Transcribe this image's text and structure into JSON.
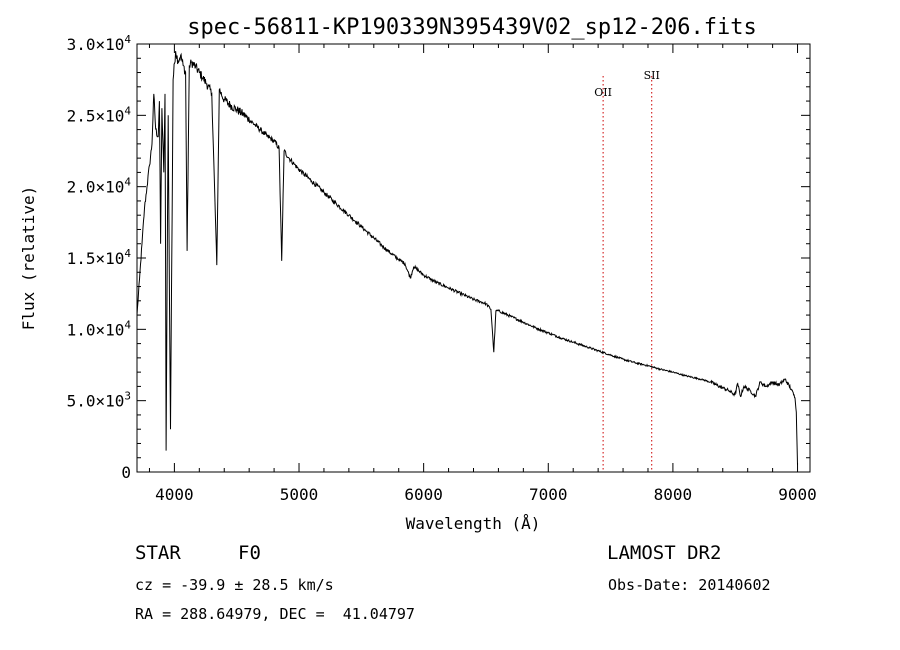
{
  "chart_data": {
    "type": "line",
    "title": "spec-56811-KP190339N395439V02_sp12-206.fits",
    "xlabel": "Wavelength (Å)",
    "ylabel": "Flux (relative)",
    "xlim": [
      3700,
      9100
    ],
    "ylim": [
      0,
      30000
    ],
    "grid": false,
    "x_ticks": [
      4000,
      5000,
      6000,
      7000,
      8000,
      9000
    ],
    "x_tick_labels": [
      "4000",
      "5000",
      "6000",
      "7000",
      "8000",
      "9000"
    ],
    "y_ticks": [
      {
        "value": 0,
        "mantissa": "0",
        "exp": ""
      },
      {
        "value": 5000,
        "mantissa": "5.0×10",
        "exp": "3"
      },
      {
        "value": 10000,
        "mantissa": "1.0×10",
        "exp": "4"
      },
      {
        "value": 15000,
        "mantissa": "1.5×10",
        "exp": "4"
      },
      {
        "value": 20000,
        "mantissa": "2.0×10",
        "exp": "4"
      },
      {
        "value": 25000,
        "mantissa": "2.5×10",
        "exp": "4"
      },
      {
        "value": 30000,
        "mantissa": "3.0×10",
        "exp": "4"
      }
    ],
    "reference_lines": [
      {
        "label": "OII",
        "x": 7440,
        "color": "#cc0000"
      },
      {
        "label": "SII",
        "x": 7830,
        "color": "#cc0000"
      }
    ],
    "series": [
      {
        "color": "#000000",
        "x": [
          3700,
          3720,
          3740,
          3760,
          3780,
          3800,
          3820,
          3835,
          3850,
          3870,
          3880,
          3889,
          3900,
          3915,
          3925,
          3933.7,
          3950,
          3968.5,
          3990,
          4010,
          4030,
          4050,
          4070,
          4090,
          4101.7,
          4120,
          4140,
          4170,
          4200,
          4230,
          4260,
          4300,
          4340.5,
          4360,
          4400,
          4450,
          4500,
          4550,
          4600,
          4650,
          4700,
          4750,
          4800,
          4840,
          4861.3,
          4880,
          4920,
          4960,
          5000,
          5100,
          5200,
          5300,
          5400,
          5500,
          5600,
          5700,
          5800,
          5850,
          5893,
          5920,
          6000,
          6100,
          6200,
          6300,
          6400,
          6500,
          6540,
          6562.8,
          6580,
          6600,
          6700,
          6800,
          6900,
          7000,
          7100,
          7200,
          7300,
          7400,
          7500,
          7600,
          7700,
          7800,
          7900,
          8000,
          8100,
          8200,
          8250,
          8300,
          8350,
          8400,
          8450,
          8498,
          8520,
          8542,
          8570,
          8620,
          8662,
          8700,
          8750,
          8800,
          8850,
          8900,
          8950,
          8980,
          8990,
          9000
        ],
        "values": [
          11000,
          13500,
          16000,
          18500,
          20000,
          21500,
          23000,
          26500,
          24000,
          23500,
          26000,
          16000,
          25500,
          21000,
          26500,
          1500,
          25000,
          3000,
          27500,
          29500,
          28800,
          29200,
          28500,
          28000,
          15500,
          28500,
          28700,
          28400,
          28000,
          27600,
          27200,
          26500,
          14500,
          26800,
          26100,
          25700,
          25400,
          25100,
          24700,
          24300,
          23900,
          23500,
          23200,
          22700,
          14800,
          22500,
          22000,
          21600,
          21200,
          20400,
          19600,
          18800,
          18000,
          17200,
          16400,
          15600,
          14900,
          14600,
          13600,
          14400,
          13800,
          13300,
          12900,
          12500,
          12100,
          11800,
          11400,
          8400,
          11300,
          11300,
          10900,
          10500,
          10100,
          9750,
          9400,
          9100,
          8800,
          8500,
          8200,
          7900,
          7650,
          7450,
          7200,
          7000,
          6750,
          6550,
          6450,
          6300,
          6100,
          5900,
          5700,
          5400,
          6200,
          5300,
          6000,
          5700,
          5300,
          6300,
          6000,
          6300,
          6100,
          6500,
          5800,
          5200,
          4200,
          500
        ]
      }
    ]
  },
  "info": {
    "object_class": "STAR",
    "subclass": "F0",
    "survey": "LAMOST DR2",
    "cz": "cz = -39.9 ± 28.5 km/s",
    "obs_date": "Obs-Date: 20140602",
    "coords": "RA = 288.64979, DEC =  41.04797"
  }
}
